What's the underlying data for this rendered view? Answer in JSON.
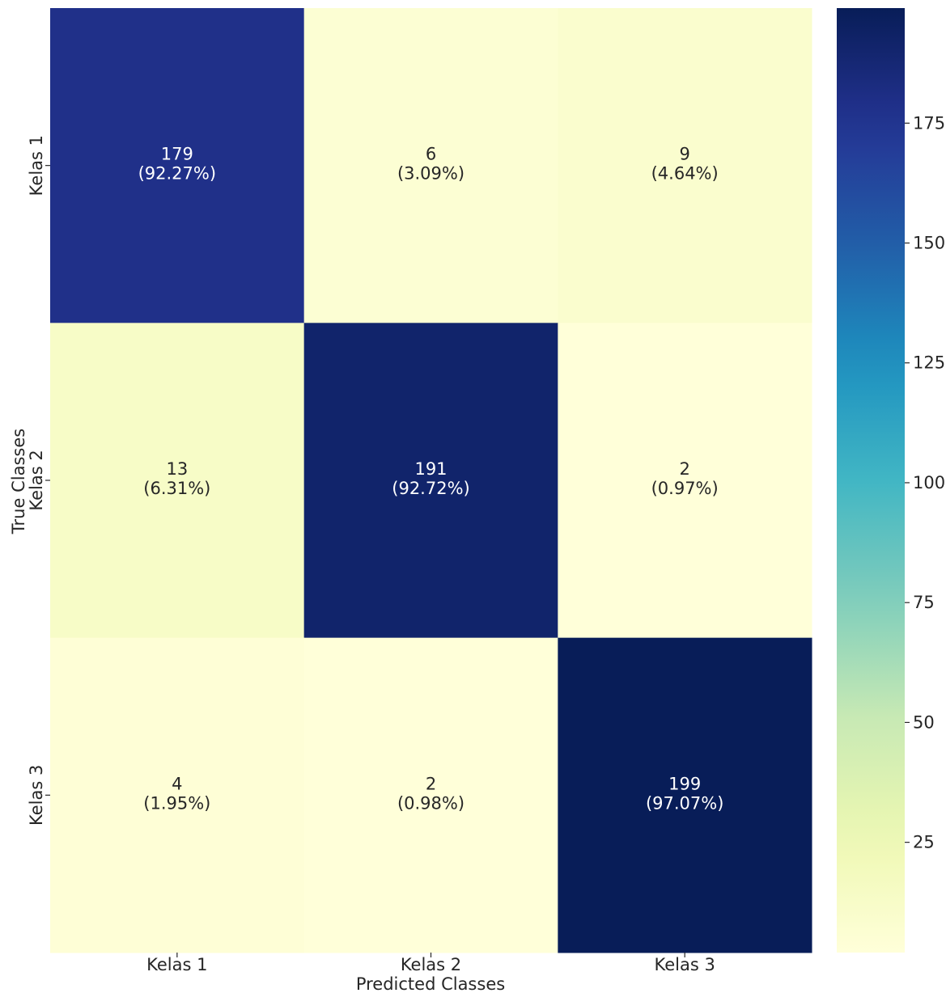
{
  "chart_data": {
    "type": "heatmap",
    "title": "",
    "xlabel": "Predicted Classes",
    "ylabel": "True Classes",
    "x_categories": [
      "Kelas 1",
      "Kelas 2",
      "Kelas 3"
    ],
    "y_categories": [
      "Kelas 1",
      "Kelas 2",
      "Kelas 3"
    ],
    "values": [
      [
        179,
        6,
        9
      ],
      [
        13,
        191,
        2
      ],
      [
        4,
        2,
        199
      ]
    ],
    "cell_labels": [
      [
        [
          "179",
          "(92.27%)"
        ],
        [
          "6",
          "(3.09%)"
        ],
        [
          "9",
          "(4.64%)"
        ]
      ],
      [
        [
          "13",
          "(6.31%)"
        ],
        [
          "191",
          "(92.72%)"
        ],
        [
          "2",
          "(0.97%)"
        ]
      ],
      [
        [
          "4",
          "(1.95%)"
        ],
        [
          "2",
          "(0.98%)"
        ],
        [
          "199",
          "(97.07%)"
        ]
      ]
    ],
    "colormap": "YlGnBu",
    "colorbar": {
      "range": [
        2,
        199
      ],
      "ticks": [
        25,
        50,
        75,
        100,
        125,
        150,
        175
      ],
      "tick_labels": [
        "25",
        "50",
        "75",
        "100",
        "125",
        "150",
        "175"
      ]
    },
    "legend": "none"
  }
}
